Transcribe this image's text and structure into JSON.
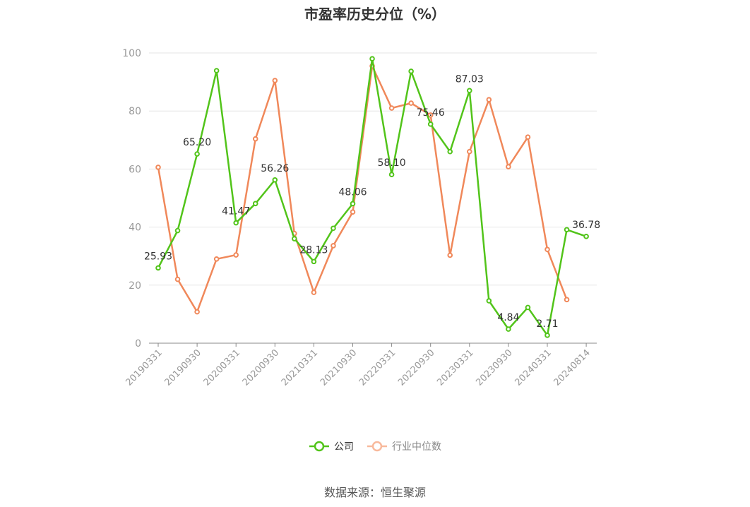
{
  "chart_data": {
    "type": "line",
    "title": "市盈率历史分位（%）",
    "xlabel": "",
    "ylabel": "",
    "ylim": [
      0,
      100
    ],
    "yticks": [
      0,
      20,
      40,
      60,
      80,
      100
    ],
    "grid": true,
    "legend_position": "bottom",
    "x": [
      "20190331",
      "20190630",
      "20190930",
      "20191231",
      "20200331",
      "20200630",
      "20200930",
      "20201231",
      "20210331",
      "20210630",
      "20210930",
      "20211231",
      "20220331",
      "20220630",
      "20220930",
      "20221231",
      "20230331",
      "20230630",
      "20230930",
      "20231231",
      "20240331",
      "20240630",
      "20240814"
    ],
    "x_tick_labels": [
      "20190331",
      "20190930",
      "20200331",
      "20200930",
      "20210331",
      "20210930",
      "20220331",
      "20220930",
      "20230331",
      "20230930",
      "20240331",
      "20240814"
    ],
    "series": [
      {
        "name": "公司",
        "color": "#52c41a",
        "values": [
          25.93,
          38.8,
          65.2,
          93.9,
          41.47,
          48.1,
          56.26,
          36.0,
          28.13,
          39.6,
          48.06,
          98.0,
          58.1,
          93.7,
          75.46,
          66.0,
          87.03,
          14.6,
          4.84,
          12.3,
          2.71,
          39.1,
          36.78
        ],
        "labels": [
          "25.93",
          null,
          "65.20",
          null,
          "41.47",
          null,
          "56.26",
          null,
          "28.13",
          null,
          "48.06",
          null,
          "58.10",
          null,
          "75.46",
          null,
          "87.03",
          null,
          "4.84",
          null,
          "2.71",
          null,
          "36.78"
        ]
      },
      {
        "name": "行业中位数",
        "color": "#f0885a",
        "values": [
          60.6,
          22.0,
          10.8,
          29.0,
          30.4,
          70.4,
          90.5,
          37.8,
          17.5,
          33.6,
          45.2,
          95.5,
          81.0,
          82.7,
          78.6,
          30.3,
          66.0,
          83.9,
          60.8,
          71.0,
          32.3,
          15.0,
          null
        ]
      }
    ],
    "source": "数据来源：恒生聚源"
  }
}
